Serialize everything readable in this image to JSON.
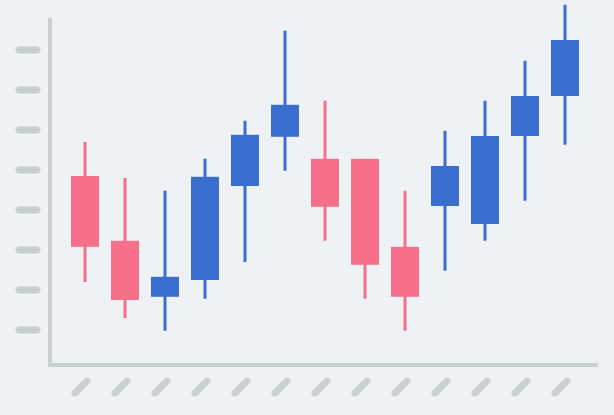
{
  "chart_data": {
    "type": "candlestick",
    "categories": [
      null,
      null,
      null,
      null,
      null,
      null,
      null,
      null,
      null,
      null,
      null,
      null,
      null
    ],
    "open": [
      4.85,
      3.23,
      1.83,
      2.25,
      4.6,
      5.83,
      5.28,
      5.28,
      3.08,
      4.1,
      3.65,
      5.85,
      6.85
    ],
    "high": [
      5.7,
      4.8,
      4.48,
      5.28,
      6.23,
      8.48,
      6.73,
      5.28,
      4.48,
      5.98,
      6.73,
      7.73,
      9.13
    ],
    "low": [
      2.2,
      1.3,
      0.98,
      1.78,
      2.7,
      4.98,
      3.23,
      1.78,
      0.98,
      2.48,
      3.23,
      4.23,
      5.63
    ],
    "close": [
      3.08,
      1.75,
      2.33,
      4.83,
      5.88,
      6.63,
      4.08,
      2.63,
      1.83,
      5.1,
      5.85,
      6.85,
      8.25
    ],
    "up_color": "#3a6fd0",
    "down_color": "#f7708a",
    "ylim": [
      0,
      9.25
    ],
    "yticks": [
      1,
      2,
      3,
      4,
      5,
      6,
      7,
      8
    ],
    "grid": false
  }
}
